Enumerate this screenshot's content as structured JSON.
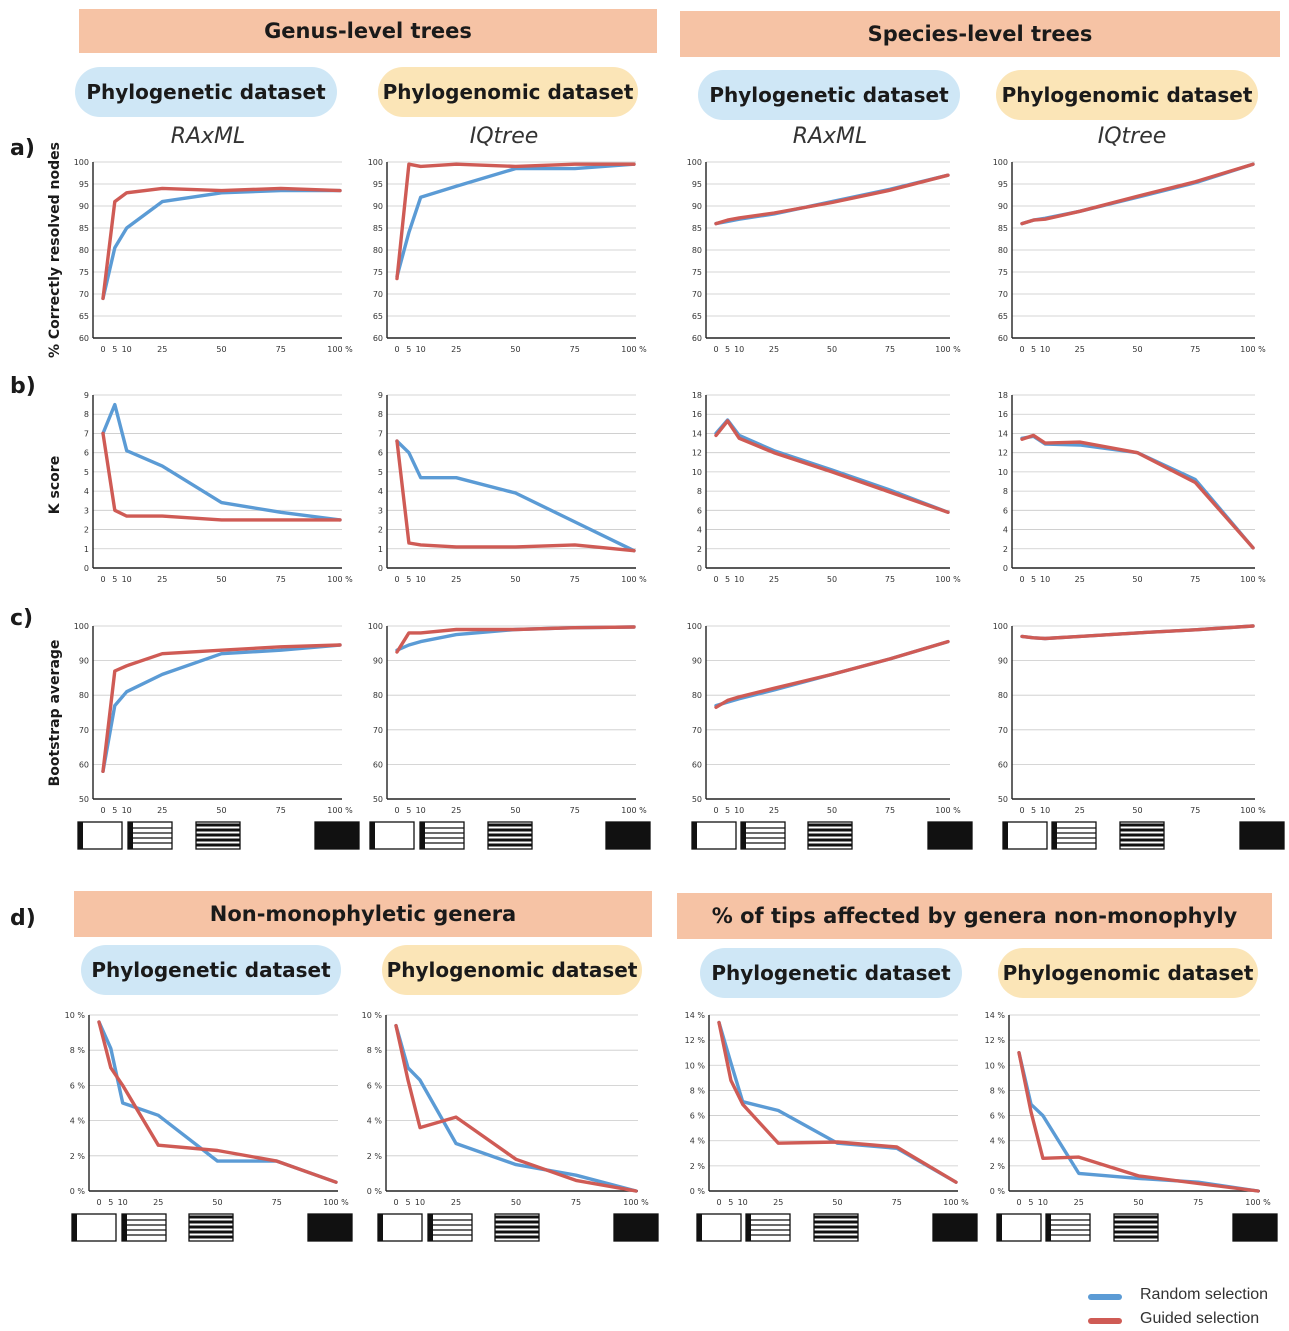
{
  "headers": {
    "genus": "Genus-level trees",
    "species": "Species-level trees",
    "nonmono": "Non-monophyletic genera",
    "tips": "% of tips affected by genera non-monophyly"
  },
  "datasets": {
    "phylogenetic": "Phylogenetic dataset",
    "phylogenomic": "Phylogenomic dataset"
  },
  "methods": {
    "raxml": "RAxML",
    "iqtree": "IQtree"
  },
  "row_labels": {
    "a": "a)",
    "b": "b)",
    "c": "c)",
    "d": "d)"
  },
  "y_labels": {
    "a": "% Correctly  resolved nodes",
    "b": "K score",
    "c": "Bootstrap average"
  },
  "legend": {
    "random": "Random selection",
    "guided": "Guided selection"
  },
  "colors": {
    "random": "#5b9bd5",
    "guided": "#cf5b55",
    "header": "#f6c3a5",
    "phylogenetic": "#cfe7f6",
    "phylogenomic": "#fbe5b7"
  },
  "chart_data": [
    {
      "id": "a1",
      "type": "line",
      "panel": "a) Genus-level, Phylogenetic dataset, RAxML",
      "ylim": [
        60,
        100
      ],
      "yticks": [
        60,
        65,
        70,
        75,
        80,
        85,
        90,
        95,
        100
      ],
      "x": [
        0,
        5,
        10,
        25,
        50,
        75,
        100
      ],
      "xticks": [
        "0",
        "5",
        "10",
        "25",
        "50",
        "75",
        "100 %"
      ],
      "series": [
        {
          "name": "Random selection",
          "values": [
            69,
            80.5,
            85,
            91,
            93,
            93.5,
            93.5
          ]
        },
        {
          "name": "Guided selection",
          "values": [
            69,
            91,
            93,
            94,
            93.5,
            94,
            93.5
          ]
        }
      ]
    },
    {
      "id": "a2",
      "type": "line",
      "panel": "a) Genus-level, Phylogenomic dataset, IQtree",
      "ylim": [
        60,
        100
      ],
      "yticks": [
        60,
        65,
        70,
        75,
        80,
        85,
        90,
        95,
        100
      ],
      "x": [
        0,
        5,
        10,
        25,
        50,
        75,
        100
      ],
      "xticks": [
        "0",
        "5",
        "10",
        "25",
        "50",
        "75",
        "100 %"
      ],
      "series": [
        {
          "name": "Random selection",
          "values": [
            74,
            84,
            92,
            94.5,
            98.5,
            98.5,
            99.5
          ]
        },
        {
          "name": "Guided selection",
          "values": [
            73.5,
            99.5,
            99,
            99.5,
            99,
            99.5,
            99.5
          ]
        }
      ]
    },
    {
      "id": "a3",
      "type": "line",
      "panel": "a) Species-level, Phylogenetic dataset, RAxML",
      "ylim": [
        60,
        100
      ],
      "yticks": [
        60,
        65,
        70,
        75,
        80,
        85,
        90,
        95,
        100
      ],
      "x": [
        0,
        5,
        10,
        25,
        50,
        75,
        100
      ],
      "xticks": [
        "0",
        "5",
        "10",
        "25",
        "50",
        "75",
        "100 %"
      ],
      "series": [
        {
          "name": "Random selection",
          "values": [
            86,
            86.5,
            87,
            88.2,
            91,
            93.8,
            97
          ]
        },
        {
          "name": "Guided selection",
          "values": [
            86,
            86.8,
            87.3,
            88.4,
            90.8,
            93.6,
            97
          ]
        }
      ]
    },
    {
      "id": "a4",
      "type": "line",
      "panel": "a) Species-level, Phylogenomic dataset, IQtree",
      "ylim": [
        60,
        100
      ],
      "yticks": [
        60,
        65,
        70,
        75,
        80,
        85,
        90,
        95,
        100
      ],
      "x": [
        0,
        5,
        10,
        25,
        50,
        75,
        100
      ],
      "xticks": [
        "0",
        "5",
        "10",
        "25",
        "50",
        "75",
        "100 %"
      ],
      "series": [
        {
          "name": "Random selection",
          "values": [
            86,
            86.8,
            87.2,
            88.8,
            92,
            95.3,
            99.5
          ]
        },
        {
          "name": "Guided selection",
          "values": [
            86,
            86.8,
            87,
            88.8,
            92.2,
            95.5,
            99.5
          ]
        }
      ]
    },
    {
      "id": "b1",
      "type": "line",
      "panel": "b) Genus-level, Phylogenetic dataset",
      "ylim": [
        0,
        9
      ],
      "yticks": [
        0,
        1,
        2,
        3,
        4,
        5,
        6,
        7,
        8,
        9
      ],
      "x": [
        0,
        5,
        10,
        25,
        50,
        75,
        100
      ],
      "xticks": [
        "0",
        "5",
        "10",
        "25",
        "50",
        "75",
        "100 %"
      ],
      "series": [
        {
          "name": "Random selection",
          "values": [
            7,
            8.5,
            6.1,
            5.3,
            3.4,
            2.9,
            2.5
          ]
        },
        {
          "name": "Guided selection",
          "values": [
            7,
            3,
            2.7,
            2.7,
            2.5,
            2.5,
            2.5
          ]
        }
      ]
    },
    {
      "id": "b2",
      "type": "line",
      "panel": "b) Genus-level, Phylogenomic dataset",
      "ylim": [
        0,
        9
      ],
      "yticks": [
        0,
        1,
        2,
        3,
        4,
        5,
        6,
        7,
        8,
        9
      ],
      "x": [
        0,
        5,
        10,
        25,
        50,
        75,
        100
      ],
      "xticks": [
        "0",
        "5",
        "10",
        "25",
        "50",
        "75",
        "100 %"
      ],
      "series": [
        {
          "name": "Random selection",
          "values": [
            6.6,
            6,
            4.7,
            4.7,
            3.9,
            2.4,
            0.9
          ]
        },
        {
          "name": "Guided selection",
          "values": [
            6.6,
            1.3,
            1.2,
            1.1,
            1.1,
            1.2,
            0.9
          ]
        }
      ]
    },
    {
      "id": "b3",
      "type": "line",
      "panel": "b) Species-level, Phylogenetic dataset",
      "ylim": [
        0,
        18
      ],
      "yticks": [
        0,
        2,
        4,
        6,
        8,
        10,
        12,
        14,
        16,
        18
      ],
      "x": [
        0,
        5,
        10,
        25,
        50,
        75,
        100
      ],
      "xticks": [
        "0",
        "5",
        "10",
        "25",
        "50",
        "75",
        "100 %"
      ],
      "series": [
        {
          "name": "Random selection",
          "values": [
            14,
            15.4,
            13.8,
            12.2,
            10.2,
            8.1,
            5.8
          ]
        },
        {
          "name": "Guided selection",
          "values": [
            13.8,
            15.3,
            13.5,
            12,
            10,
            7.9,
            5.8
          ]
        }
      ]
    },
    {
      "id": "b4",
      "type": "line",
      "panel": "b) Species-level, Phylogenomic dataset",
      "ylim": [
        0,
        18
      ],
      "yticks": [
        0,
        2,
        4,
        6,
        8,
        10,
        12,
        14,
        16,
        18
      ],
      "x": [
        0,
        5,
        10,
        25,
        50,
        75,
        100
      ],
      "xticks": [
        "0",
        "5",
        "10",
        "25",
        "50",
        "75",
        "100 %"
      ],
      "series": [
        {
          "name": "Random selection",
          "values": [
            13.5,
            13.7,
            12.9,
            12.8,
            12,
            9.2,
            2.1
          ]
        },
        {
          "name": "Guided selection",
          "values": [
            13.4,
            13.8,
            13,
            13.1,
            12,
            8.9,
            2.1
          ]
        }
      ]
    },
    {
      "id": "c1",
      "type": "line",
      "panel": "c) Genus-level, Phylogenetic dataset",
      "ylim": [
        50,
        100
      ],
      "yticks": [
        50,
        60,
        70,
        80,
        90,
        100
      ],
      "x": [
        0,
        5,
        10,
        25,
        50,
        75,
        100
      ],
      "xticks": [
        "0",
        "5",
        "10",
        "25",
        "50",
        "75",
        "100 %"
      ],
      "series": [
        {
          "name": "Random selection",
          "values": [
            58,
            77,
            81,
            86,
            92,
            93,
            94.5
          ]
        },
        {
          "name": "Guided selection",
          "values": [
            58,
            87,
            88.5,
            92,
            93,
            94,
            94.5
          ]
        }
      ]
    },
    {
      "id": "c2",
      "type": "line",
      "panel": "c) Genus-level, Phylogenomic dataset",
      "ylim": [
        50,
        100
      ],
      "yticks": [
        50,
        60,
        70,
        80,
        90,
        100
      ],
      "x": [
        0,
        5,
        10,
        25,
        50,
        75,
        100
      ],
      "xticks": [
        "0",
        "5",
        "10",
        "25",
        "50",
        "75",
        "100 %"
      ],
      "series": [
        {
          "name": "Random selection",
          "values": [
            93,
            94.5,
            95.5,
            97.5,
            99,
            99.5,
            99.7
          ]
        },
        {
          "name": "Guided selection",
          "values": [
            92.5,
            98,
            98,
            99,
            99,
            99.5,
            99.7
          ]
        }
      ]
    },
    {
      "id": "c3",
      "type": "line",
      "panel": "c) Species-level, Phylogenetic dataset",
      "ylim": [
        50,
        100
      ],
      "yticks": [
        50,
        60,
        70,
        80,
        90,
        100
      ],
      "x": [
        0,
        5,
        10,
        25,
        50,
        75,
        100
      ],
      "xticks": [
        "0",
        "5",
        "10",
        "25",
        "50",
        "75",
        "100 %"
      ],
      "series": [
        {
          "name": "Random selection",
          "values": [
            77,
            78,
            79,
            81.5,
            86,
            90.5,
            95.5
          ]
        },
        {
          "name": "Guided selection",
          "values": [
            76.5,
            78.5,
            79.5,
            82,
            86,
            90.5,
            95.5
          ]
        }
      ]
    },
    {
      "id": "c4",
      "type": "line",
      "panel": "c) Species-level, Phylogenomic dataset",
      "ylim": [
        50,
        100
      ],
      "yticks": [
        50,
        60,
        70,
        80,
        90,
        100
      ],
      "x": [
        0,
        5,
        10,
        25,
        50,
        75,
        100
      ],
      "xticks": [
        "0",
        "5",
        "10",
        "25",
        "50",
        "75",
        "100 %"
      ],
      "series": [
        {
          "name": "Random selection",
          "values": [
            97,
            96.6,
            96.4,
            97,
            98,
            98.9,
            100
          ]
        },
        {
          "name": "Guided selection",
          "values": [
            97,
            96.6,
            96.4,
            97,
            98,
            98.9,
            100
          ]
        }
      ]
    },
    {
      "id": "d1",
      "type": "line",
      "panel": "d) Non-monophyletic genera, Phylogenetic dataset",
      "ylim": [
        0,
        10
      ],
      "yticks": [
        0,
        2,
        4,
        6,
        8,
        10
      ],
      "ytick_labels": [
        "0 %",
        "2 %",
        "4 %",
        "6 %",
        "8 %",
        "10 %"
      ],
      "x": [
        0,
        5,
        10,
        25,
        50,
        75,
        100
      ],
      "xticks": [
        "0",
        "5",
        "10",
        "25",
        "50",
        "75",
        "100 %"
      ],
      "series": [
        {
          "name": "Random selection",
          "values": [
            9.6,
            8.1,
            5,
            4.3,
            1.7,
            1.7,
            0.5
          ]
        },
        {
          "name": "Guided selection",
          "values": [
            9.6,
            7,
            6,
            2.6,
            2.3,
            1.7,
            0.5
          ]
        }
      ]
    },
    {
      "id": "d2",
      "type": "line",
      "panel": "d) Non-monophyletic genera, Phylogenomic dataset",
      "ylim": [
        0,
        10
      ],
      "yticks": [
        0,
        2,
        4,
        6,
        8,
        10
      ],
      "ytick_labels": [
        "0 %",
        "2 %",
        "4 %",
        "6 %",
        "8 %",
        "10 %"
      ],
      "x": [
        0,
        5,
        10,
        25,
        50,
        75,
        100
      ],
      "xticks": [
        "0",
        "5",
        "10",
        "25",
        "50",
        "75",
        "100 %"
      ],
      "series": [
        {
          "name": "Random selection",
          "values": [
            9.4,
            7,
            6.3,
            2.7,
            1.5,
            0.9,
            0
          ]
        },
        {
          "name": "Guided selection",
          "values": [
            9.4,
            6.3,
            3.6,
            4.2,
            1.8,
            0.6,
            0
          ]
        }
      ]
    },
    {
      "id": "d3",
      "type": "line",
      "panel": "d) % of tips affected, Phylogenetic dataset",
      "ylim": [
        0,
        14
      ],
      "yticks": [
        0,
        2,
        4,
        6,
        8,
        10,
        12,
        14
      ],
      "ytick_labels": [
        "0 %",
        "2 %",
        "4 %",
        "6 %",
        "8 %",
        "10 %",
        "12 %",
        "14 %"
      ],
      "x": [
        0,
        5,
        10,
        25,
        50,
        75,
        100
      ],
      "xticks": [
        "0",
        "5",
        "10",
        "25",
        "50",
        "75",
        "100 %"
      ],
      "series": [
        {
          "name": "Random selection",
          "values": [
            13.4,
            10.2,
            7.1,
            6.4,
            3.8,
            3.4,
            0.7
          ]
        },
        {
          "name": "Guided selection",
          "values": [
            13.4,
            8.8,
            6.9,
            3.8,
            3.9,
            3.5,
            0.7
          ]
        }
      ]
    },
    {
      "id": "d4",
      "type": "line",
      "panel": "d) % of tips affected, Phylogenomic dataset",
      "ylim": [
        0,
        14
      ],
      "yticks": [
        0,
        2,
        4,
        6,
        8,
        10,
        12,
        14
      ],
      "ytick_labels": [
        "0 %",
        "2 %",
        "4 %",
        "6 %",
        "8 %",
        "10 %",
        "12 %",
        "14 %"
      ],
      "x": [
        0,
        5,
        10,
        25,
        50,
        75,
        100
      ],
      "xticks": [
        "0",
        "5",
        "10",
        "25",
        "50",
        "75",
        "100 %"
      ],
      "series": [
        {
          "name": "Random selection",
          "values": [
            11,
            6.9,
            6,
            1.4,
            1,
            0.7,
            0
          ]
        },
        {
          "name": "Guided selection",
          "values": [
            11,
            6.3,
            2.6,
            2.7,
            1.2,
            0.6,
            0
          ]
        }
      ]
    }
  ]
}
